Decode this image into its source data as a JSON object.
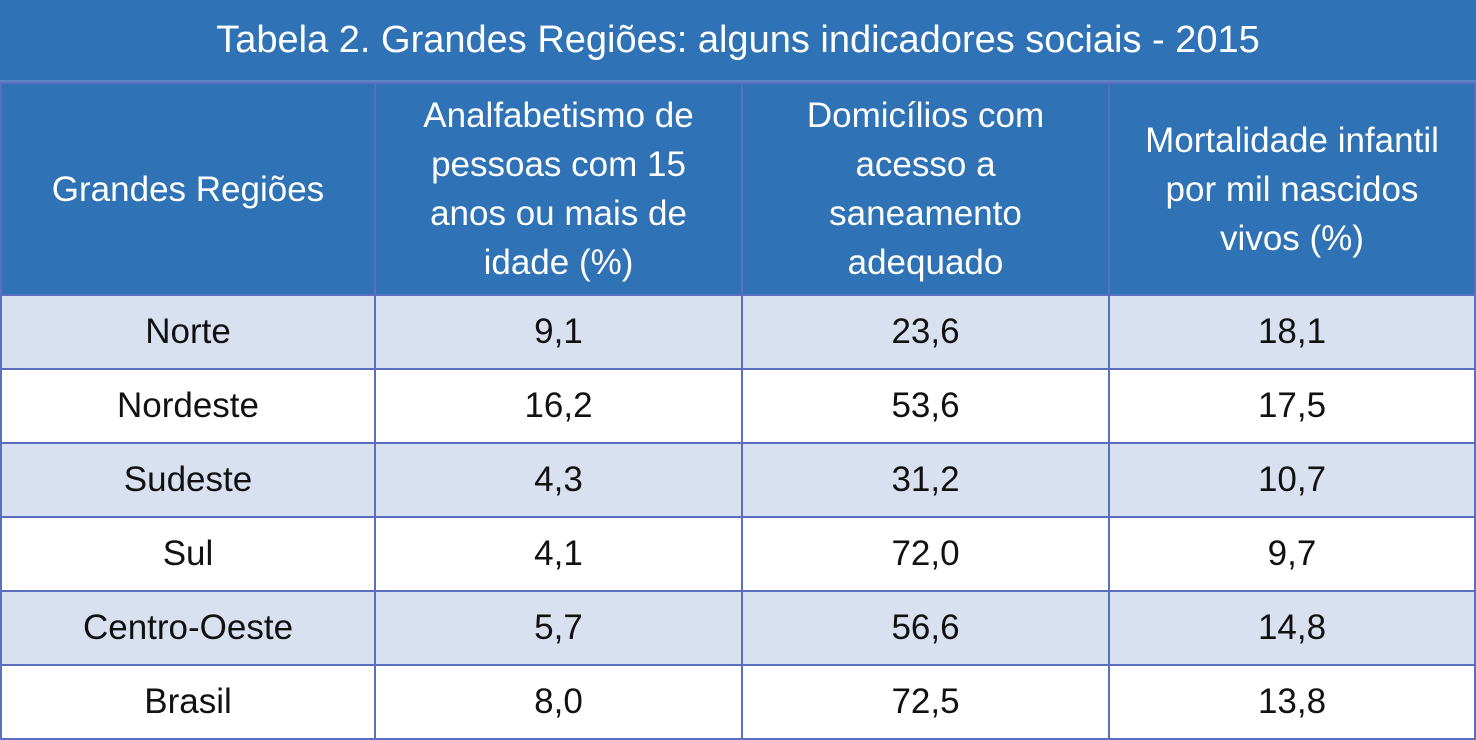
{
  "title": "Tabela 2. Grandes Regiões: alguns indicadores sociais - 2015",
  "headers": [
    "Grandes Regiões",
    "Analfabetismo de pessoas com 15 anos ou mais de idade (%)",
    "Domicílios com acesso a saneamento adequado",
    "Mortalidade infantil por mil nascidos vivos (%)"
  ],
  "rows": [
    [
      "Norte",
      "9,1",
      "23,6",
      "18,1"
    ],
    [
      "Nordeste",
      "16,2",
      "53,6",
      "17,5"
    ],
    [
      "Sudeste",
      "4,3",
      "31,2",
      "10,7"
    ],
    [
      "Sul",
      "4,1",
      "72,0",
      "9,7"
    ],
    [
      "Centro-Oeste",
      "5,7",
      "56,6",
      "14,8"
    ],
    [
      "Brasil",
      "8,0",
      "72,5",
      "13,8"
    ]
  ],
  "colors": {
    "header_bg": "#2f73b6",
    "alt_row_bg": "#d9e1f1",
    "border": "#5b6fc0"
  }
}
